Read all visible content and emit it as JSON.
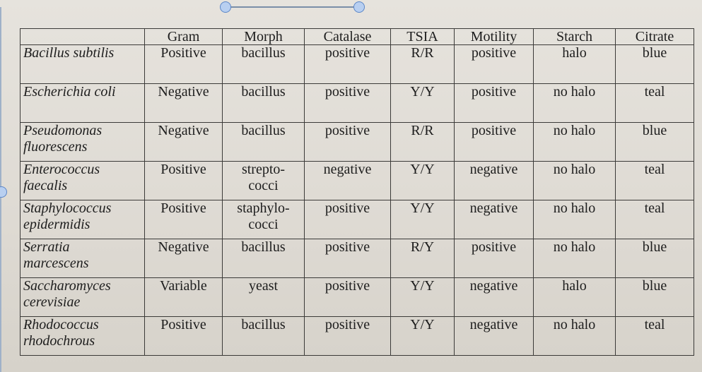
{
  "table": {
    "headers": [
      "",
      "Gram",
      "Morph",
      "Catalase",
      "TSIA",
      "Motility",
      "Starch",
      "Citrate"
    ],
    "rows": [
      {
        "organism": [
          "Bacillus subtilis"
        ],
        "gram": "Positive",
        "morph": [
          "bacillus"
        ],
        "catalase": "positive",
        "tsia": "R/R",
        "motility": "positive",
        "starch": "halo",
        "citrate": "blue"
      },
      {
        "organism": [
          "Escherichia coli"
        ],
        "gram": "Negative",
        "morph": [
          "bacillus"
        ],
        "catalase": "positive",
        "tsia": "Y/Y",
        "motility": "positive",
        "starch": "no halo",
        "citrate": "teal"
      },
      {
        "organism": [
          "Pseudomonas",
          "fluorescens"
        ],
        "gram": "Negative",
        "morph": [
          "bacillus"
        ],
        "catalase": "positive",
        "tsia": "R/R",
        "motility": "positive",
        "starch": "no halo",
        "citrate": "blue"
      },
      {
        "organism": [
          "Enterococcus",
          "faecalis"
        ],
        "gram": "Positive",
        "morph": [
          "strepto-",
          "cocci"
        ],
        "catalase": "negative",
        "tsia": "Y/Y",
        "motility": "negative",
        "starch": "no halo",
        "citrate": "teal"
      },
      {
        "organism": [
          "Staphylococcus",
          "epidermidis"
        ],
        "gram": "Positive",
        "morph": [
          "staphylo-",
          "cocci"
        ],
        "catalase": "positive",
        "tsia": "Y/Y",
        "motility": "negative",
        "starch": "no halo",
        "citrate": "teal"
      },
      {
        "organism": [
          "Serratia",
          "marcescens"
        ],
        "gram": "Negative",
        "morph": [
          "bacillus"
        ],
        "catalase": "positive",
        "tsia": "R/Y",
        "motility": "positive",
        "starch": "no halo",
        "citrate": "blue"
      },
      {
        "organism": [
          "Saccharomyces",
          "cerevisiae"
        ],
        "gram": "Variable",
        "morph": [
          "yeast"
        ],
        "catalase": "positive",
        "tsia": "Y/Y",
        "motility": "negative",
        "starch": "halo",
        "citrate": "blue"
      },
      {
        "organism": [
          "Rhodococcus",
          "rhodochrous"
        ],
        "gram": "Positive",
        "morph": [
          "bacillus"
        ],
        "catalase": "positive",
        "tsia": "Y/Y",
        "motility": "negative",
        "starch": "no halo",
        "citrate": "teal"
      }
    ]
  }
}
